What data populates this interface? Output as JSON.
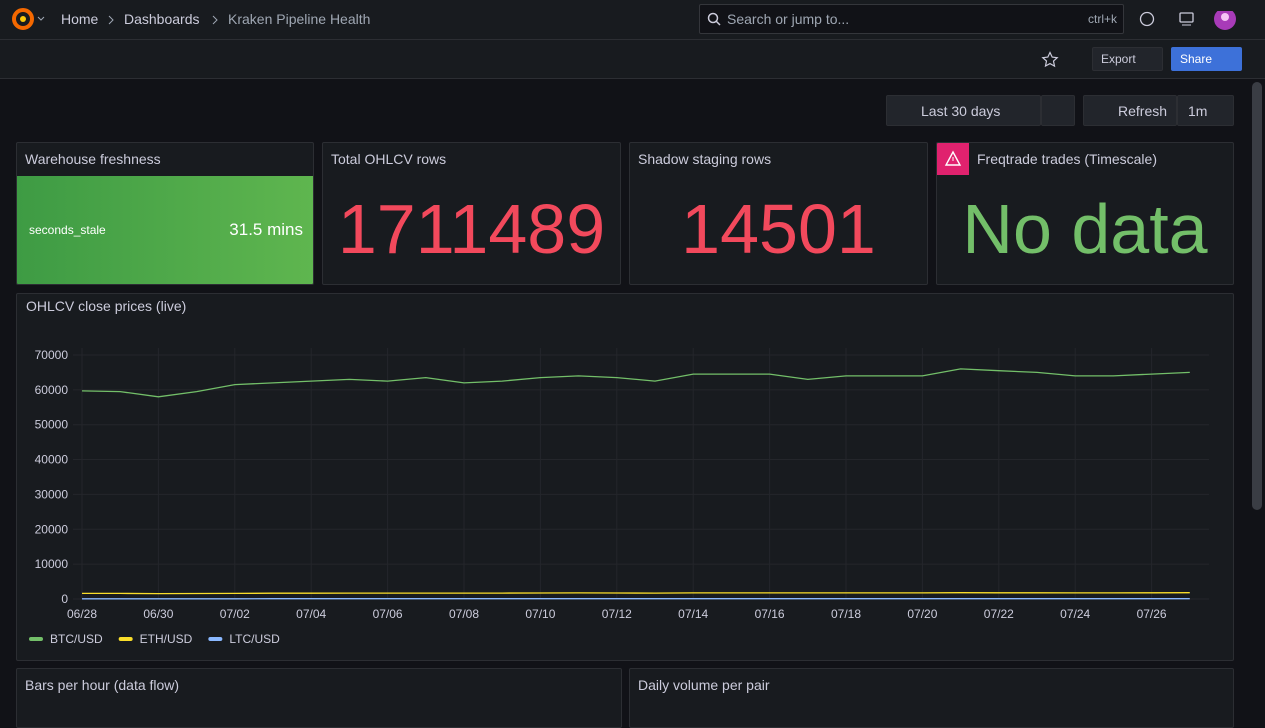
{
  "nav": {
    "breadcrumbs": [
      "Home",
      "Dashboards",
      "Kraken Pipeline Health"
    ],
    "search_placeholder": "Search or jump to...",
    "shortcut": "ctrl+k"
  },
  "toolbar": {
    "export": "Export",
    "share": "Share"
  },
  "time_controls": {
    "range": "Last 30 days",
    "refresh": "Refresh",
    "interval": "1m"
  },
  "stat_panels": [
    {
      "title": "Warehouse freshness",
      "field": "seconds_stale",
      "value": "31.5 mins"
    },
    {
      "title": "Total OHLCV rows",
      "value": "1711489"
    },
    {
      "title": "Shadow staging rows",
      "value": "14501"
    },
    {
      "title": "Freqtrade trades (Timescale)",
      "value": "No data"
    }
  ],
  "chart_data": {
    "type": "line",
    "title": "OHLCV close prices (live)",
    "categories": [
      "06/28",
      null,
      "06/30",
      null,
      "07/02",
      null,
      "07/04",
      null,
      "07/06",
      null,
      "07/08",
      null,
      "07/10",
      null,
      "07/12",
      null,
      "07/14",
      null,
      "07/16",
      null,
      "07/18",
      null,
      "07/20",
      null,
      "07/22",
      null,
      "07/24",
      null,
      "07/26",
      null
    ],
    "series": [
      {
        "name": "BTC/USD",
        "color": "#73bf69",
        "values": [
          59700,
          59500,
          58000,
          59500,
          61500,
          62000,
          62500,
          63000,
          62500,
          63500,
          62000,
          62500,
          63500,
          64000,
          63500,
          62500,
          64500,
          64500,
          64500,
          63000,
          64000,
          64000,
          64000,
          66000,
          65500,
          65000,
          64000,
          64000,
          64500,
          65000
        ]
      },
      {
        "name": "ETH/USD",
        "color": "#fade2a",
        "values": [
          1600,
          1600,
          1550,
          1580,
          1620,
          1650,
          1650,
          1700,
          1680,
          1700,
          1680,
          1700,
          1720,
          1750,
          1720,
          1700,
          1750,
          1760,
          1760,
          1740,
          1750,
          1760,
          1760,
          1800,
          1790,
          1780,
          1760,
          1760,
          1780,
          1800
        ]
      },
      {
        "name": "LTC/USD",
        "color": "#8ab8ff",
        "values": [
          70,
          70,
          68,
          69,
          71,
          72,
          72,
          73,
          72,
          73,
          72,
          72,
          73,
          74,
          73,
          72,
          74,
          74,
          74,
          73,
          73,
          74,
          74,
          75,
          75,
          74,
          73,
          73,
          74,
          74
        ]
      }
    ],
    "ylim": [
      0,
      72000
    ],
    "yticks": [
      0,
      10000,
      20000,
      30000,
      40000,
      50000,
      60000,
      70000
    ],
    "grid": true
  },
  "bottom_panels": [
    "Bars per hour (data flow)",
    "Daily volume per pair"
  ]
}
